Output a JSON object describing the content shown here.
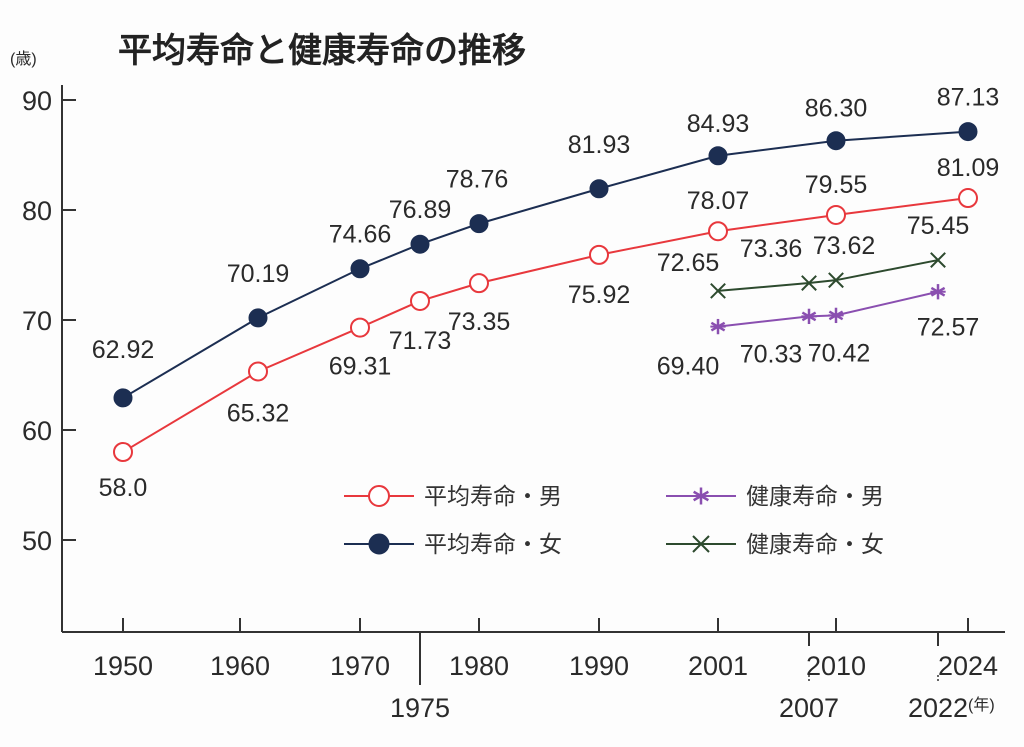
{
  "chart_data": {
    "type": "line",
    "title": "平均寿命と健康寿命の推移",
    "ylabel": "(歳)",
    "xlabel": "(年)",
    "ylim": [
      50,
      90
    ],
    "yticks": [
      90,
      80,
      70,
      60,
      50
    ],
    "xticks_upper": [
      "1950",
      "1960",
      "1970",
      "1980",
      "1990",
      "2001",
      "2010",
      "2024"
    ],
    "xticks_lower": [
      "1975",
      "2007",
      "2022"
    ],
    "grid": false,
    "legend_position": "bottom-right",
    "series": [
      {
        "name": "平均寿命・女",
        "color": "#1c2e52",
        "marker": "filled-circle",
        "x": [
          "1950",
          "1960",
          "1970",
          "1975",
          "1980",
          "1990",
          "2001",
          "2010",
          "2024"
        ],
        "values": [
          62.92,
          70.19,
          74.66,
          76.89,
          78.76,
          81.93,
          84.93,
          86.3,
          87.13
        ],
        "labels": [
          "62.92",
          "70.19",
          "74.66",
          "76.89",
          "78.76",
          "81.93",
          "84.93",
          "86.30",
          "87.13"
        ]
      },
      {
        "name": "平均寿命・男",
        "color": "#e8383d",
        "marker": "open-circle",
        "x": [
          "1950",
          "1960",
          "1970",
          "1975",
          "1980",
          "1990",
          "2001",
          "2010",
          "2024"
        ],
        "values": [
          58.0,
          65.32,
          69.31,
          71.73,
          73.35,
          75.92,
          78.07,
          79.55,
          81.09
        ],
        "labels": [
          "58.0",
          "65.32",
          "69.31",
          "71.73",
          "73.35",
          "75.92",
          "78.07",
          "79.55",
          "81.09"
        ]
      },
      {
        "name": "健康寿命・女",
        "color": "#2d4a2e",
        "marker": "x",
        "x": [
          "2001",
          "2007",
          "2010",
          "2022"
        ],
        "values": [
          72.65,
          73.36,
          73.62,
          75.45
        ],
        "labels": [
          "72.65",
          "73.36",
          "73.62",
          "75.45"
        ]
      },
      {
        "name": "健康寿命・男",
        "color": "#8a4fb0",
        "marker": "asterisk",
        "x": [
          "2001",
          "2007",
          "2010",
          "2022"
        ],
        "values": [
          69.4,
          70.33,
          70.42,
          72.57
        ],
        "labels": [
          "69.40",
          "70.33",
          "70.42",
          "72.57"
        ]
      }
    ],
    "legend": [
      {
        "label": "平均寿命・男",
        "series": "平均寿命・男"
      },
      {
        "label": "健康寿命・男",
        "series": "健康寿命・男"
      },
      {
        "label": "平均寿命・女",
        "series": "平均寿命・女"
      },
      {
        "label": "健康寿命・女",
        "series": "健康寿命・女"
      }
    ]
  }
}
